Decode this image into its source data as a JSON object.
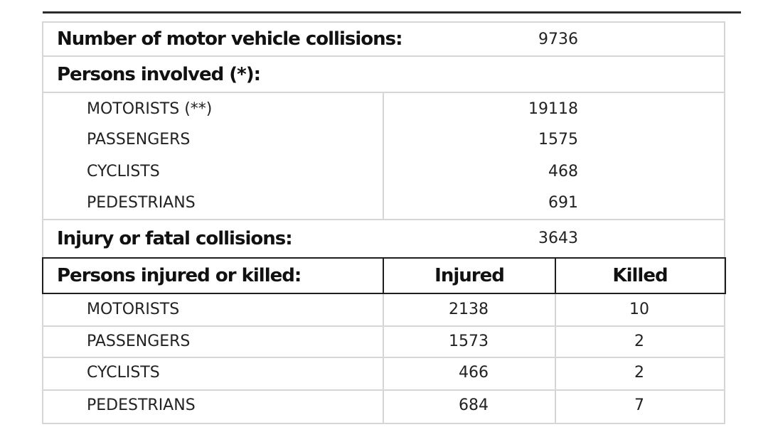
{
  "summary": {
    "collisions_label": "Number of motor vehicle collisions:",
    "collisions_value": "9736",
    "persons_involved_label": "Persons involved (*):",
    "injury_fatal_label": "Injury or fatal collisions:",
    "injury_fatal_value": "3643"
  },
  "involved": [
    {
      "label": "MOTORISTS (**)",
      "value": "19118"
    },
    {
      "label": "PASSENGERS",
      "value": "1575"
    },
    {
      "label": "CYCLISTS",
      "value": "468"
    },
    {
      "label": "PEDESTRIANS",
      "value": "691"
    }
  ],
  "casualties": {
    "header_label": "Persons injured or killed:",
    "injured_header": "Injured",
    "killed_header": "Killed",
    "rows": [
      {
        "label": "MOTORISTS",
        "injured": "2138",
        "killed": "10"
      },
      {
        "label": "PASSENGERS",
        "injured": "1573",
        "killed": "2"
      },
      {
        "label": "CYCLISTS",
        "injured": "466",
        "killed": "2"
      },
      {
        "label": "PEDESTRIANS",
        "injured": "684",
        "killed": "7"
      }
    ]
  }
}
